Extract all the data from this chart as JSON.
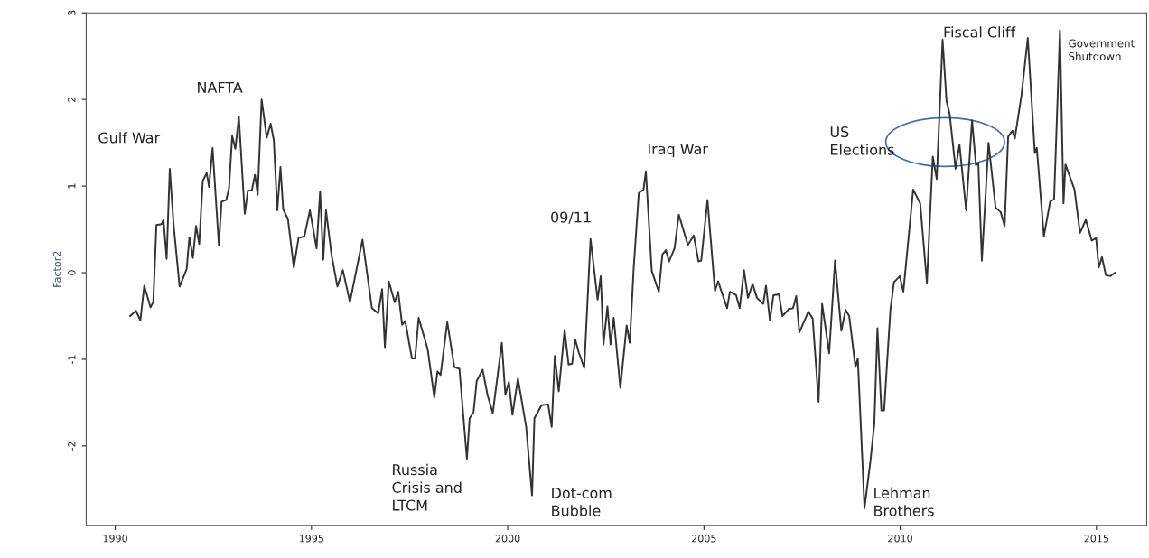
{
  "chart_data": {
    "type": "line",
    "ylabel": "Factor2",
    "xlim": [
      1989.26,
      2016.28
    ],
    "ylim": [
      -2.92,
      3
    ],
    "xticks": [
      1990,
      1995,
      2000,
      2005,
      2010,
      2015
    ],
    "yticks": [
      -2,
      -1,
      0,
      1,
      2,
      3
    ],
    "grid": false,
    "marker": "none",
    "line_style": "solid",
    "series": [
      {
        "color": "#333333",
        "x": [
          1990.38,
          1990.53,
          1990.64,
          1990.74,
          1990.9,
          1990.97,
          1991.05,
          1991.18,
          1991.23,
          1991.31,
          1991.39,
          1991.49,
          1991.64,
          1991.82,
          1991.89,
          1991.98,
          1992.06,
          1992.14,
          1992.23,
          1992.33,
          1992.39,
          1992.48,
          1992.64,
          1992.71,
          1992.83,
          1992.9,
          1992.98,
          1993.06,
          1993.15,
          1993.3,
          1993.38,
          1993.48,
          1993.56,
          1993.63,
          1993.73,
          1993.86,
          1993.96,
          1994.04,
          1994.13,
          1994.21,
          1994.28,
          1994.4,
          1994.55,
          1994.67,
          1994.82,
          1994.96,
          1995.13,
          1995.22,
          1995.3,
          1995.37,
          1995.51,
          1995.66,
          1995.8,
          1995.98,
          1996.3,
          1996.54,
          1996.7,
          1996.8,
          1996.87,
          1996.97,
          1997.12,
          1997.21,
          1997.31,
          1997.39,
          1997.56,
          1997.64,
          1997.73,
          1997.96,
          1998.13,
          1998.21,
          1998.29,
          1998.46,
          1998.64,
          1998.77,
          1998.96,
          1999.03,
          1999.13,
          1999.21,
          1999.36,
          1999.49,
          1999.62,
          1999.85,
          1999.94,
          2000.03,
          2000.12,
          2000.26,
          2000.47,
          2000.62,
          2000.68,
          2000.86,
          2001.03,
          2001.12,
          2001.2,
          2001.3,
          2001.45,
          2001.55,
          2001.64,
          2001.72,
          2001.81,
          2001.95,
          2002.11,
          2002.29,
          2002.37,
          2002.44,
          2002.54,
          2002.62,
          2002.7,
          2002.87,
          2003.03,
          2003.11,
          2003.21,
          2003.34,
          2003.46,
          2003.52,
          2003.67,
          2003.85,
          2003.94,
          2004.03,
          2004.11,
          2004.25,
          2004.36,
          2004.59,
          2004.74,
          2004.86,
          2004.93,
          2005.09,
          2005.28,
          2005.36,
          2005.59,
          2005.66,
          2005.82,
          2005.91,
          2006.02,
          2006.12,
          2006.24,
          2006.35,
          2006.51,
          2006.58,
          2006.68,
          2006.77,
          2006.91,
          2007.0,
          2007.16,
          2007.27,
          2007.35,
          2007.43,
          2007.66,
          2007.77,
          2007.92,
          2008.01,
          2008.19,
          2008.34,
          2008.5,
          2008.61,
          2008.7,
          2008.86,
          2008.92,
          2009.09,
          2009.24,
          2009.34,
          2009.42,
          2009.52,
          2009.59,
          2009.75,
          2009.84,
          2009.99,
          2010.08,
          2010.33,
          2010.51,
          2010.68,
          2010.83,
          2010.93,
          2011.08,
          2011.18,
          2011.26,
          2011.41,
          2011.51,
          2011.68,
          2011.83,
          2011.93,
          2011.99,
          2012.08,
          2012.25,
          2012.43,
          2012.56,
          2012.66,
          2012.75,
          2012.86,
          2012.92,
          2013.09,
          2013.25,
          2013.43,
          2013.48,
          2013.66,
          2013.82,
          2013.92,
          2014.07,
          2014.16,
          2014.21,
          2014.44,
          2014.58,
          2014.73,
          2014.88,
          2014.99,
          2015.06,
          2015.14,
          2015.24,
          2015.36,
          2015.47
        ],
        "values": [
          -0.5,
          -0.44,
          -0.55,
          -0.15,
          -0.4,
          -0.34,
          0.55,
          0.56,
          0.61,
          0.16,
          1.2,
          0.54,
          -0.16,
          0.04,
          0.41,
          0.17,
          0.54,
          0.33,
          1.06,
          1.15,
          0.99,
          1.44,
          0.32,
          0.82,
          0.84,
          0.98,
          1.58,
          1.43,
          1.8,
          0.68,
          0.95,
          0.95,
          1.13,
          0.9,
          2.0,
          1.56,
          1.72,
          1.53,
          0.72,
          1.22,
          0.73,
          0.62,
          0.06,
          0.4,
          0.42,
          0.72,
          0.28,
          0.94,
          0.15,
          0.72,
          0.21,
          -0.16,
          0.03,
          -0.34,
          0.38,
          -0.41,
          -0.47,
          -0.19,
          -0.86,
          -0.1,
          -0.34,
          -0.22,
          -0.6,
          -0.56,
          -0.99,
          -0.99,
          -0.52,
          -0.88,
          -1.44,
          -1.14,
          -1.18,
          -0.57,
          -1.09,
          -1.11,
          -2.15,
          -1.68,
          -1.61,
          -1.25,
          -1.12,
          -1.42,
          -1.62,
          -0.81,
          -1.41,
          -1.26,
          -1.64,
          -1.22,
          -1.78,
          -2.57,
          -1.68,
          -1.53,
          -1.52,
          -1.78,
          -0.96,
          -1.37,
          -0.66,
          -1.06,
          -1.05,
          -0.77,
          -0.92,
          -1.1,
          0.39,
          -0.31,
          -0.04,
          -0.83,
          -0.39,
          -0.83,
          -0.52,
          -1.33,
          -0.61,
          -0.81,
          0.06,
          0.92,
          0.96,
          1.17,
          0.02,
          -0.22,
          0.21,
          0.26,
          0.13,
          0.28,
          0.67,
          0.32,
          0.43,
          0.13,
          0.14,
          0.84,
          -0.21,
          -0.1,
          -0.41,
          -0.22,
          -0.26,
          -0.41,
          0.03,
          -0.29,
          -0.13,
          -0.29,
          -0.36,
          -0.15,
          -0.55,
          -0.26,
          -0.25,
          -0.5,
          -0.42,
          -0.41,
          -0.27,
          -0.69,
          -0.45,
          -0.53,
          -1.49,
          -0.36,
          -0.93,
          0.14,
          -0.67,
          -0.43,
          -0.5,
          -1.09,
          -0.99,
          -2.72,
          -2.18,
          -1.75,
          -0.64,
          -1.59,
          -1.59,
          -0.43,
          -0.11,
          -0.04,
          -0.22,
          0.96,
          0.8,
          -0.12,
          1.34,
          1.08,
          2.69,
          1.98,
          1.83,
          1.2,
          1.48,
          0.72,
          1.76,
          1.24,
          1.27,
          0.14,
          1.5,
          0.75,
          0.7,
          0.54,
          1.57,
          1.64,
          1.55,
          2.05,
          2.71,
          1.38,
          1.44,
          0.42,
          0.82,
          0.85,
          2.8,
          0.8,
          1.25,
          0.96,
          0.46,
          0.61,
          0.37,
          0.4,
          0.06,
          0.18,
          -0.03,
          -0.04,
          0.0
        ]
      }
    ],
    "annotations": [
      "Gulf War",
      "NAFTA",
      "Russia\nCrisis and\nLTCM",
      "Dot-com\nBubble",
      "09/11",
      "Iraq War",
      "US\nElections",
      "Fiscal Cliff",
      "Government\nShutdown",
      "Lehman\nBrothers"
    ]
  }
}
